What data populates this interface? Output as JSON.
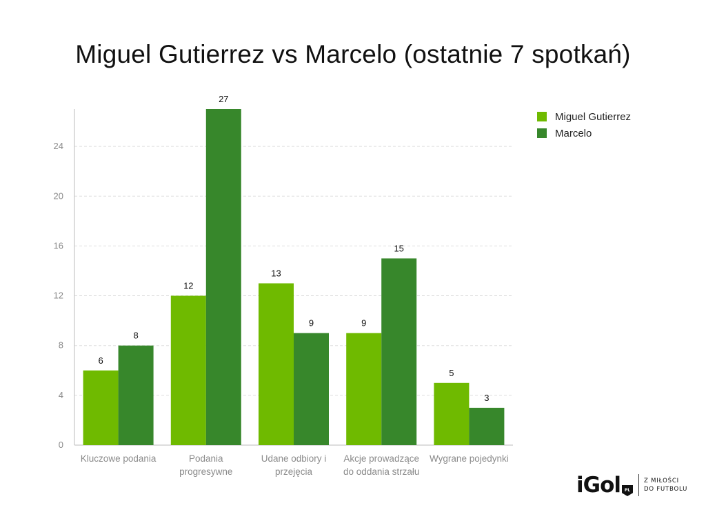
{
  "title": "Miguel Gutierrez vs Marcelo (ostatnie 7 spotkań)",
  "colors": {
    "series1": "#6fba00",
    "series2": "#37872b",
    "grid": "#dddddd",
    "axis": "#bbbbbb"
  },
  "legend": {
    "position": "top-right"
  },
  "brand": {
    "logo": "iGol",
    "badge": "PL",
    "tagline_line1": "Z MIŁOŚCI",
    "tagline_line2": "DO FUTBOLU"
  },
  "chart_data": {
    "type": "bar",
    "title": "Miguel Gutierrez vs Marcelo (ostatnie 7 spotkań)",
    "categories": [
      [
        "Kluczowe podania"
      ],
      [
        "Podania",
        "progresywne"
      ],
      [
        "Udane odbiory i",
        "przejęcia"
      ],
      [
        "Akcje prowadzące",
        "do oddania strzału"
      ],
      [
        "Wygrane pojedynki"
      ]
    ],
    "series": [
      {
        "name": "Miguel Gutierrez",
        "values": [
          6,
          12,
          13,
          9,
          5
        ]
      },
      {
        "name": "Marcelo",
        "values": [
          8,
          27,
          9,
          15,
          3
        ]
      }
    ],
    "ylim": [
      0,
      27
    ],
    "yticks": [
      0,
      4,
      8,
      12,
      16,
      20,
      24
    ],
    "grid": true,
    "xlabel": "",
    "ylabel": ""
  }
}
